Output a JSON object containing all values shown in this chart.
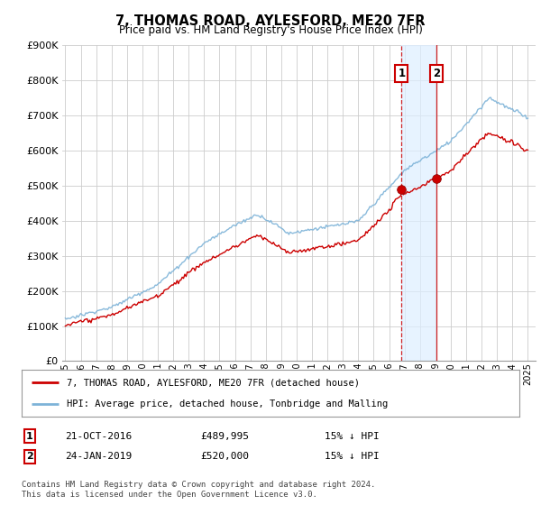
{
  "title": "7, THOMAS ROAD, AYLESFORD, ME20 7FR",
  "subtitle": "Price paid vs. HM Land Registry's House Price Index (HPI)",
  "ylim": [
    0,
    900000
  ],
  "yticks": [
    0,
    100000,
    200000,
    300000,
    400000,
    500000,
    600000,
    700000,
    800000,
    900000
  ],
  "ytick_labels": [
    "£0",
    "£100K",
    "£200K",
    "£300K",
    "£400K",
    "£500K",
    "£600K",
    "£700K",
    "£800K",
    "£900K"
  ],
  "hpi_color": "#7db3d8",
  "price_color": "#cc0000",
  "sale1_x": 2016.81,
  "sale1_price": 489995,
  "sale2_x": 2019.07,
  "sale2_price": 520000,
  "legend_entry1": "7, THOMAS ROAD, AYLESFORD, ME20 7FR (detached house)",
  "legend_entry2": "HPI: Average price, detached house, Tonbridge and Malling",
  "ann1_label": "1",
  "ann1_date": "21-OCT-2016",
  "ann1_price": "£489,995",
  "ann1_hpi": "15% ↓ HPI",
  "ann2_label": "2",
  "ann2_date": "24-JAN-2019",
  "ann2_price": "£520,000",
  "ann2_hpi": "15% ↓ HPI",
  "footer": "Contains HM Land Registry data © Crown copyright and database right 2024.\nThis data is licensed under the Open Government Licence v3.0.",
  "bg_color": "#ffffff",
  "grid_color": "#cccccc",
  "span_color": "#ddeeff"
}
